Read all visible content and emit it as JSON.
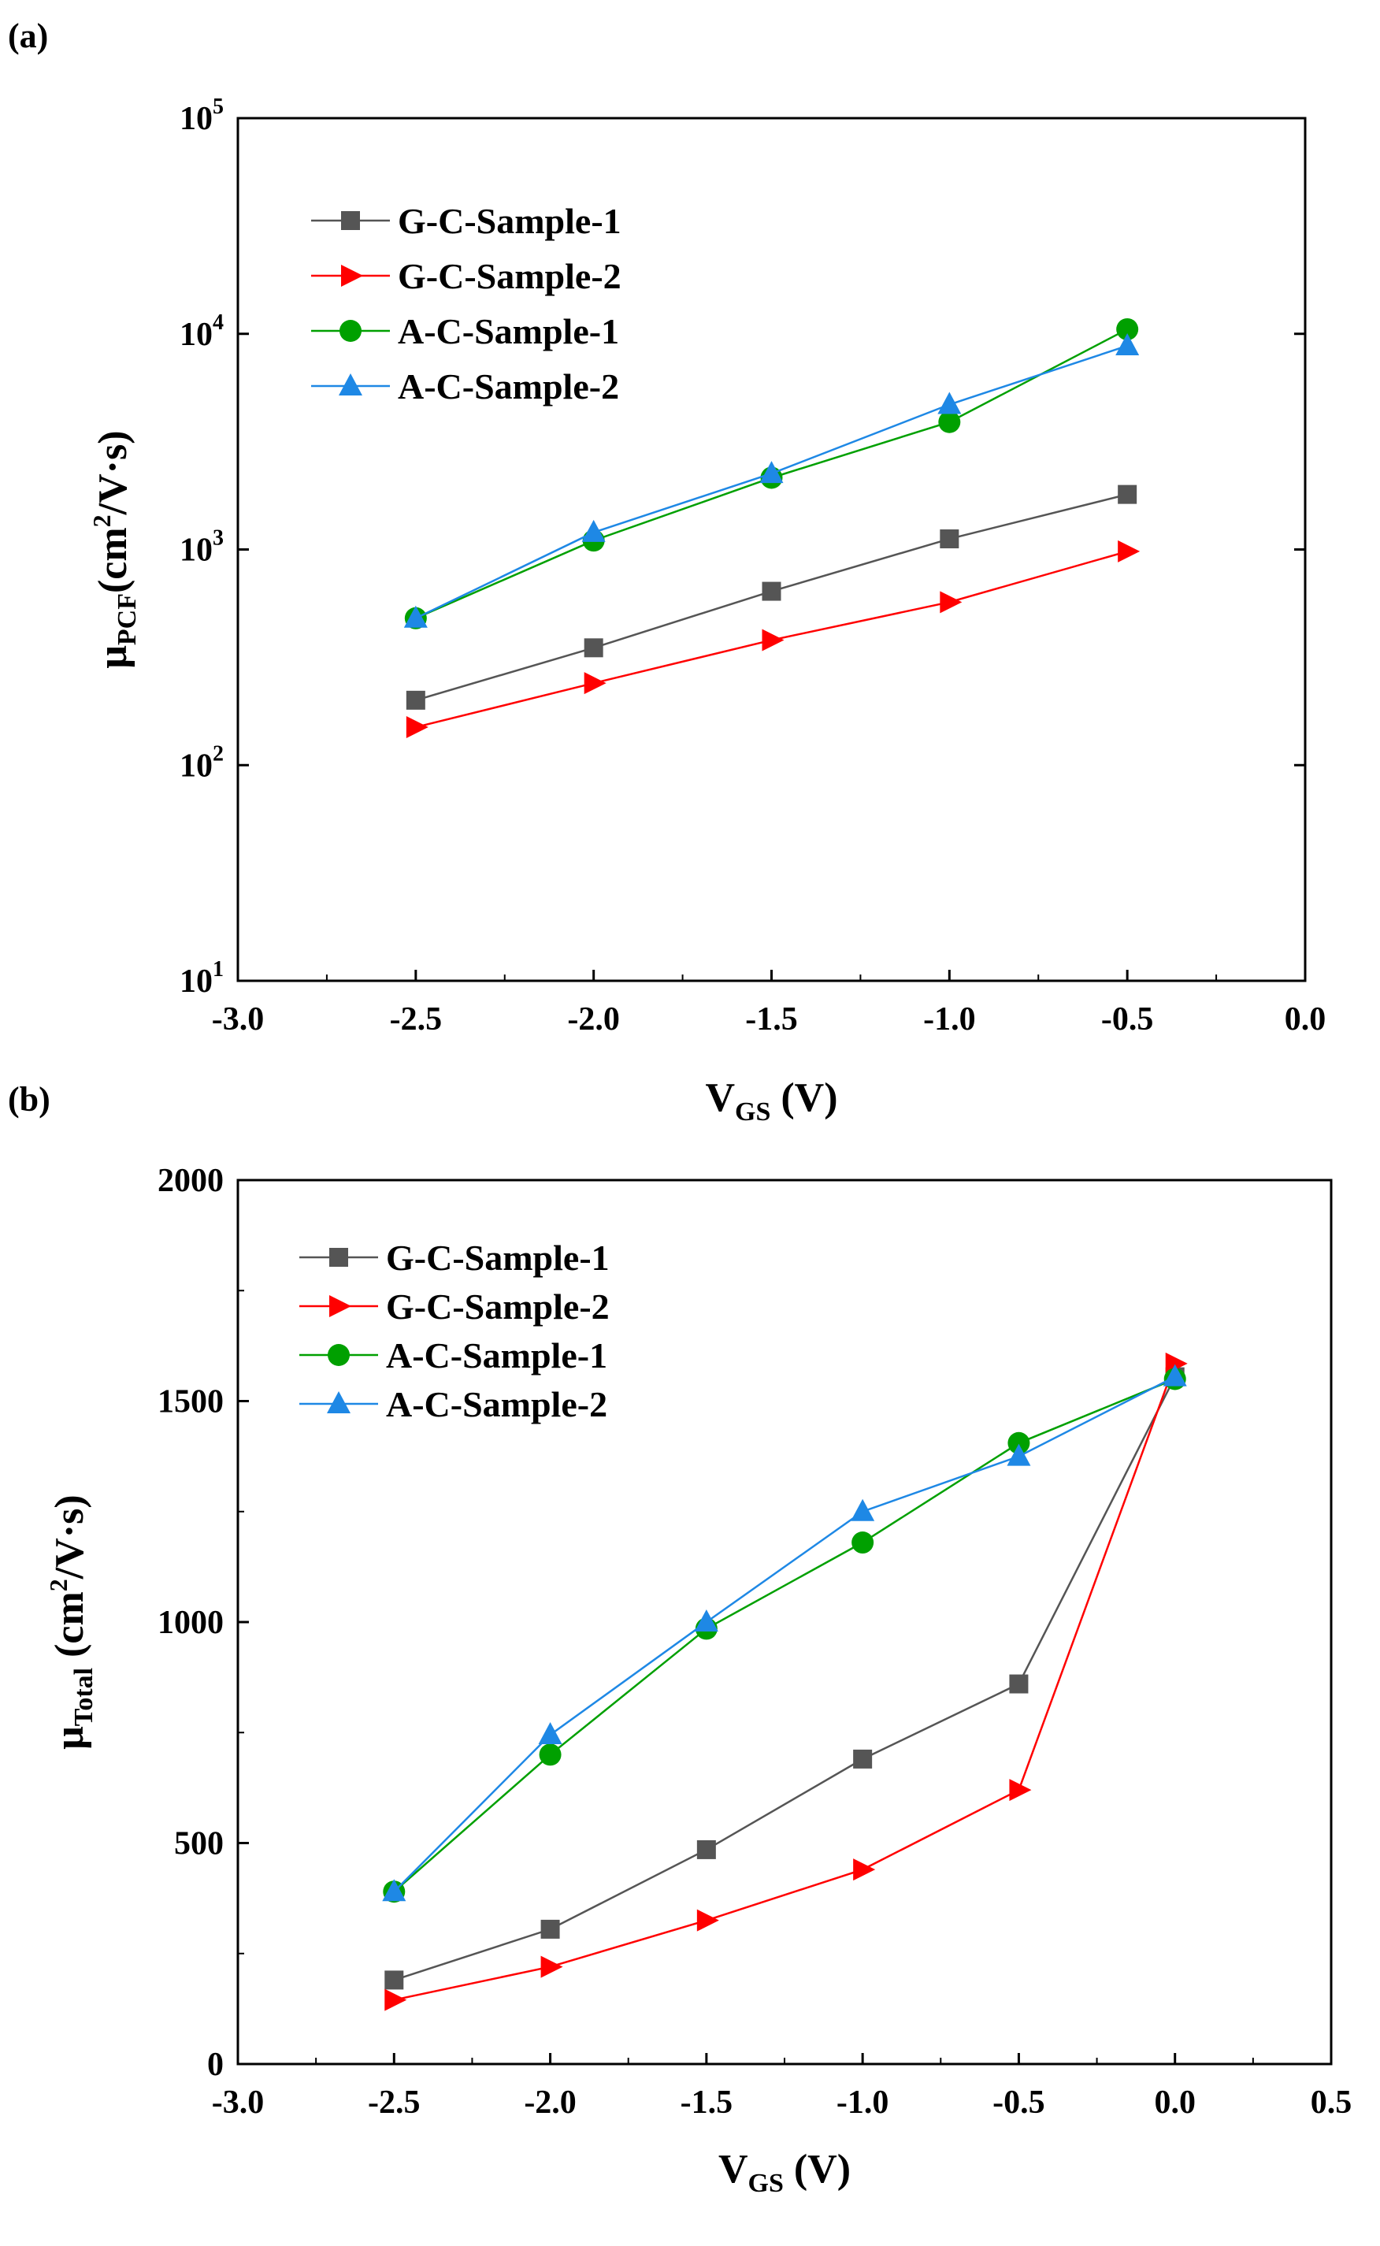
{
  "chart_data": [
    {
      "panel_label": "(a)",
      "type": "line",
      "yscale": "log",
      "xlabel": {
        "main": "V",
        "sub": "GS",
        "tail": " (V)"
      },
      "ylabel": {
        "main": "μ",
        "sub": "PCF",
        "unit_a": "(cm",
        "unit_sup": "2",
        "unit_b": "/V·s)"
      },
      "xlim": [
        -3.0,
        0.0
      ],
      "ylim": [
        10,
        100000
      ],
      "xticks": [
        {
          "value": -3.0,
          "label": "-3.0"
        },
        {
          "value": -2.5,
          "label": "-2.5"
        },
        {
          "value": -2.0,
          "label": "-2.0"
        },
        {
          "value": -1.5,
          "label": "-1.5"
        },
        {
          "value": -1.0,
          "label": "-1.0"
        },
        {
          "value": -0.5,
          "label": "-0.5"
        },
        {
          "value": 0.0,
          "label": "0.0"
        }
      ],
      "yticks": [
        {
          "value": 10,
          "base": "10",
          "exp": "1"
        },
        {
          "value": 100,
          "base": "10",
          "exp": "2"
        },
        {
          "value": 1000,
          "base": "10",
          "exp": "3"
        },
        {
          "value": 10000,
          "base": "10",
          "exp": "4"
        },
        {
          "value": 100000,
          "base": "10",
          "exp": "5"
        }
      ],
      "legend_position": "top-left",
      "series": [
        {
          "name": "G-C-Sample-1",
          "color": "#555555",
          "marker": "square",
          "x": [
            -2.5,
            -2.0,
            -1.5,
            -1.0,
            -0.5
          ],
          "y": [
            200,
            350,
            640,
            1120,
            1800
          ]
        },
        {
          "name": "G-C-Sample-2",
          "color": "#ff0000",
          "marker": "triangle-right",
          "x": [
            -2.5,
            -2.0,
            -1.5,
            -1.0,
            -0.5
          ],
          "y": [
            150,
            240,
            380,
            570,
            980
          ]
        },
        {
          "name": "A-C-Sample-1",
          "color": "#00a000",
          "marker": "circle",
          "x": [
            -2.5,
            -2.0,
            -1.5,
            -1.0,
            -0.5
          ],
          "y": [
            480,
            1100,
            2150,
            3900,
            10500
          ]
        },
        {
          "name": "A-C-Sample-2",
          "color": "#1e88e5",
          "marker": "triangle-up",
          "x": [
            -2.5,
            -2.0,
            -1.5,
            -1.0,
            -0.5
          ],
          "y": [
            480,
            1200,
            2250,
            4700,
            8800
          ]
        }
      ]
    },
    {
      "panel_label": "(b)",
      "type": "line",
      "yscale": "linear",
      "xlabel": {
        "main": "V",
        "sub": "GS",
        "tail": " (V)"
      },
      "ylabel": {
        "main": "μ",
        "sub": "Total",
        "unit_a": " (cm",
        "unit_sup": "2",
        "unit_b": "/V·s)"
      },
      "xlim": [
        -3.0,
        0.5
      ],
      "ylim": [
        0,
        2000
      ],
      "xticks": [
        {
          "value": -3.0,
          "label": "-3.0"
        },
        {
          "value": -2.5,
          "label": "-2.5"
        },
        {
          "value": -2.0,
          "label": "-2.0"
        },
        {
          "value": -1.5,
          "label": "-1.5"
        },
        {
          "value": -1.0,
          "label": "-1.0"
        },
        {
          "value": -0.5,
          "label": "-0.5"
        },
        {
          "value": 0.0,
          "label": "0.0"
        },
        {
          "value": 0.5,
          "label": "0.5"
        }
      ],
      "yticks": [
        {
          "value": 0,
          "label": "0"
        },
        {
          "value": 500,
          "label": "500"
        },
        {
          "value": 1000,
          "label": "1000"
        },
        {
          "value": 1500,
          "label": "1500"
        },
        {
          "value": 2000,
          "label": "2000"
        }
      ],
      "legend_position": "top-left",
      "series": [
        {
          "name": "G-C-Sample-1",
          "color": "#555555",
          "marker": "square",
          "x": [
            -2.5,
            -2.0,
            -1.5,
            -1.0,
            -0.5,
            0.0
          ],
          "y": [
            190,
            305,
            485,
            690,
            860,
            1555
          ]
        },
        {
          "name": "G-C-Sample-2",
          "color": "#ff0000",
          "marker": "triangle-right",
          "x": [
            -2.5,
            -2.0,
            -1.5,
            -1.0,
            -0.5,
            0.0
          ],
          "y": [
            145,
            220,
            325,
            440,
            620,
            1585
          ]
        },
        {
          "name": "A-C-Sample-1",
          "color": "#00a000",
          "marker": "circle",
          "x": [
            -2.5,
            -2.0,
            -1.5,
            -1.0,
            -0.5,
            0.0
          ],
          "y": [
            390,
            700,
            985,
            1180,
            1405,
            1550
          ]
        },
        {
          "name": "A-C-Sample-2",
          "color": "#1e88e5",
          "marker": "triangle-up",
          "x": [
            -2.5,
            -2.0,
            -1.5,
            -1.0,
            -0.5,
            0.0
          ],
          "y": [
            390,
            745,
            1000,
            1250,
            1375,
            1555
          ]
        }
      ]
    }
  ]
}
